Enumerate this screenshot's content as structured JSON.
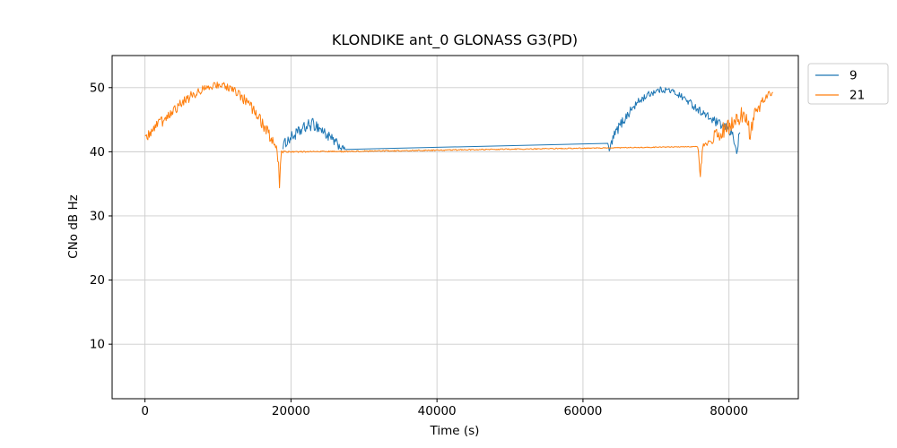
{
  "chart_data": {
    "type": "line",
    "title": "KLONDIKE ant_0 GLONASS G3(PD)",
    "xlabel": "Time (s)",
    "ylabel": "CNo dB Hz",
    "xlim": [
      -4500,
      89500
    ],
    "ylim": [
      1.5,
      55
    ],
    "xticks": [
      0,
      20000,
      40000,
      60000,
      80000
    ],
    "yticks": [
      10,
      20,
      30,
      40,
      50
    ],
    "grid": true,
    "grid_color": "#cccccc",
    "axes_color": "#000000",
    "legend_position": "outside-top-right",
    "legend_labels": [
      "9",
      "21"
    ],
    "points_format": "[time_s, cno_dbhz, noise_amplitude]",
    "series": [
      {
        "name": "9",
        "color": "#1f77b4",
        "points": [
          [
            18900,
            41.0,
            0.7
          ],
          [
            19300,
            41.5,
            0.8
          ],
          [
            20000,
            42.2,
            0.9
          ],
          [
            21000,
            43.0,
            0.9
          ],
          [
            22000,
            43.8,
            1.0
          ],
          [
            22800,
            44.3,
            1.0
          ],
          [
            23500,
            44.1,
            1.0
          ],
          [
            24300,
            43.3,
            0.9
          ],
          [
            25200,
            42.3,
            0.9
          ],
          [
            26200,
            41.3,
            0.8
          ],
          [
            27000,
            40.6,
            0.5
          ],
          [
            27600,
            40.4,
            0.08
          ],
          [
            63400,
            41.3,
            0.05
          ],
          [
            63600,
            40.1,
            0.4
          ],
          [
            63900,
            41.3,
            0.8
          ],
          [
            64400,
            42.8,
            0.8
          ],
          [
            65000,
            44.0,
            0.8
          ],
          [
            65800,
            45.3,
            0.8
          ],
          [
            66800,
            46.8,
            0.7
          ],
          [
            67800,
            48.0,
            0.6
          ],
          [
            68800,
            48.8,
            0.55
          ],
          [
            69800,
            49.4,
            0.5
          ],
          [
            70800,
            49.7,
            0.5
          ],
          [
            71800,
            49.6,
            0.5
          ],
          [
            72800,
            49.1,
            0.5
          ],
          [
            73800,
            48.4,
            0.55
          ],
          [
            74800,
            47.5,
            0.6
          ],
          [
            75800,
            46.6,
            0.6
          ],
          [
            76800,
            45.7,
            0.65
          ],
          [
            77800,
            44.9,
            0.7
          ],
          [
            78800,
            44.2,
            0.7
          ],
          [
            79800,
            43.6,
            0.75
          ],
          [
            80400,
            43.0,
            0.9
          ],
          [
            80800,
            41.5,
            1.2
          ],
          [
            81050,
            39.4,
            0.4
          ],
          [
            81250,
            41.5,
            0.9
          ],
          [
            81500,
            43.0,
            0.6
          ]
        ]
      },
      {
        "name": "21",
        "color": "#ff7f0e",
        "points": [
          [
            0,
            41.8,
            0.7
          ],
          [
            800,
            43.0,
            0.8
          ],
          [
            1800,
            44.2,
            0.9
          ],
          [
            2800,
            45.3,
            0.9
          ],
          [
            3800,
            46.4,
            0.9
          ],
          [
            4800,
            47.4,
            0.85
          ],
          [
            5800,
            48.3,
            0.8
          ],
          [
            6800,
            49.0,
            0.7
          ],
          [
            7800,
            49.7,
            0.6
          ],
          [
            8800,
            50.1,
            0.55
          ],
          [
            9800,
            50.4,
            0.5
          ],
          [
            10800,
            50.3,
            0.5
          ],
          [
            11800,
            49.8,
            0.6
          ],
          [
            12800,
            49.0,
            0.7
          ],
          [
            13800,
            47.9,
            0.8
          ],
          [
            14800,
            46.5,
            0.85
          ],
          [
            15800,
            44.9,
            0.9
          ],
          [
            16800,
            43.1,
            0.9
          ],
          [
            17600,
            41.4,
            0.85
          ],
          [
            18100,
            40.1,
            0.6
          ],
          [
            18300,
            38.0,
            1.0
          ],
          [
            18430,
            34.2,
            0.3
          ],
          [
            18560,
            38.0,
            0.8
          ],
          [
            18700,
            39.9,
            0.3
          ],
          [
            19200,
            40.0,
            0.12
          ],
          [
            27400,
            40.05,
            0.1
          ],
          [
            75700,
            40.8,
            0.06
          ],
          [
            75900,
            39.0,
            1.0
          ],
          [
            76080,
            36.4,
            0.4
          ],
          [
            76250,
            39.0,
            0.8
          ],
          [
            76500,
            41.0,
            0.7
          ],
          [
            77200,
            41.8,
            1.0
          ],
          [
            78200,
            42.5,
            1.2
          ],
          [
            79200,
            43.3,
            1.3
          ],
          [
            80200,
            44.2,
            1.4
          ],
          [
            81200,
            45.2,
            1.3
          ],
          [
            82000,
            46.0,
            1.2
          ],
          [
            82600,
            45.0,
            1.5
          ],
          [
            82900,
            42.2,
            1.2
          ],
          [
            83200,
            44.5,
            1.3
          ],
          [
            83800,
            46.5,
            1.0
          ],
          [
            84600,
            47.8,
            0.8
          ],
          [
            85400,
            48.8,
            0.6
          ],
          [
            86000,
            49.3,
            0.4
          ]
        ]
      }
    ]
  }
}
